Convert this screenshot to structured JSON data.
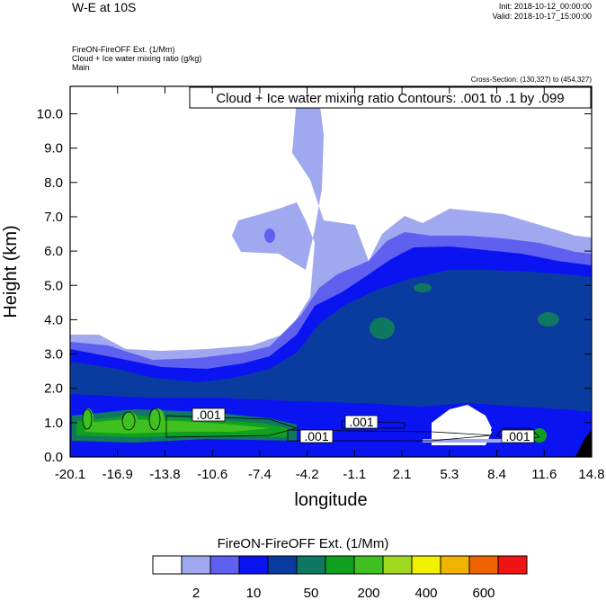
{
  "header": {
    "title": "W-E at 10S",
    "init": "Init: 2018-10-12_00:00:00",
    "valid": "Valid: 2018-10-17_15:00:00",
    "sub1": "FireON-FireOFF Ext.   (1/Mm)",
    "sub2": "Cloud + Ice water mixing ratio   (g/kg)",
    "sub3": "Main",
    "cross_section": "Cross-Section: (130,327) to (454,327)"
  },
  "chart_data": {
    "type": "contour",
    "contour_label": "Cloud + Ice water mixing ratio Contours: .001 to .1 by .099",
    "xlabel": "longitude",
    "ylabel": "Height (km)",
    "xlim": [
      -20.1,
      14.8
    ],
    "ylim": [
      0.0,
      10.8
    ],
    "x_ticks": [
      "-20.1",
      "-16.9",
      "-13.8",
      "-10.6",
      "-7.4",
      "-4.2",
      "-1.1",
      "2.1",
      "5.3",
      "8.4",
      "11.6",
      "14.8"
    ],
    "y_ticks": [
      "0.0",
      "1.0",
      "2.0",
      "3.0",
      "4.0",
      "5.0",
      "6.0",
      "7.0",
      "8.0",
      "9.0",
      "10.0"
    ],
    "contour_value_labels": [
      ".001",
      ".001",
      ".001",
      ".001"
    ],
    "colorbar": {
      "title": "FireON-FireOFF Ext.  (1/Mm)",
      "colors": [
        "#ffffff",
        "#a0a8f0",
        "#6060f0",
        "#0a14f0",
        "#0a3ca0",
        "#107860",
        "#10a020",
        "#40c020",
        "#a0d820",
        "#f0f000",
        "#f0b400",
        "#f06400",
        "#f01414"
      ],
      "tick_labels": [
        "2",
        "10",
        "50",
        "200",
        "400",
        "600"
      ]
    }
  }
}
